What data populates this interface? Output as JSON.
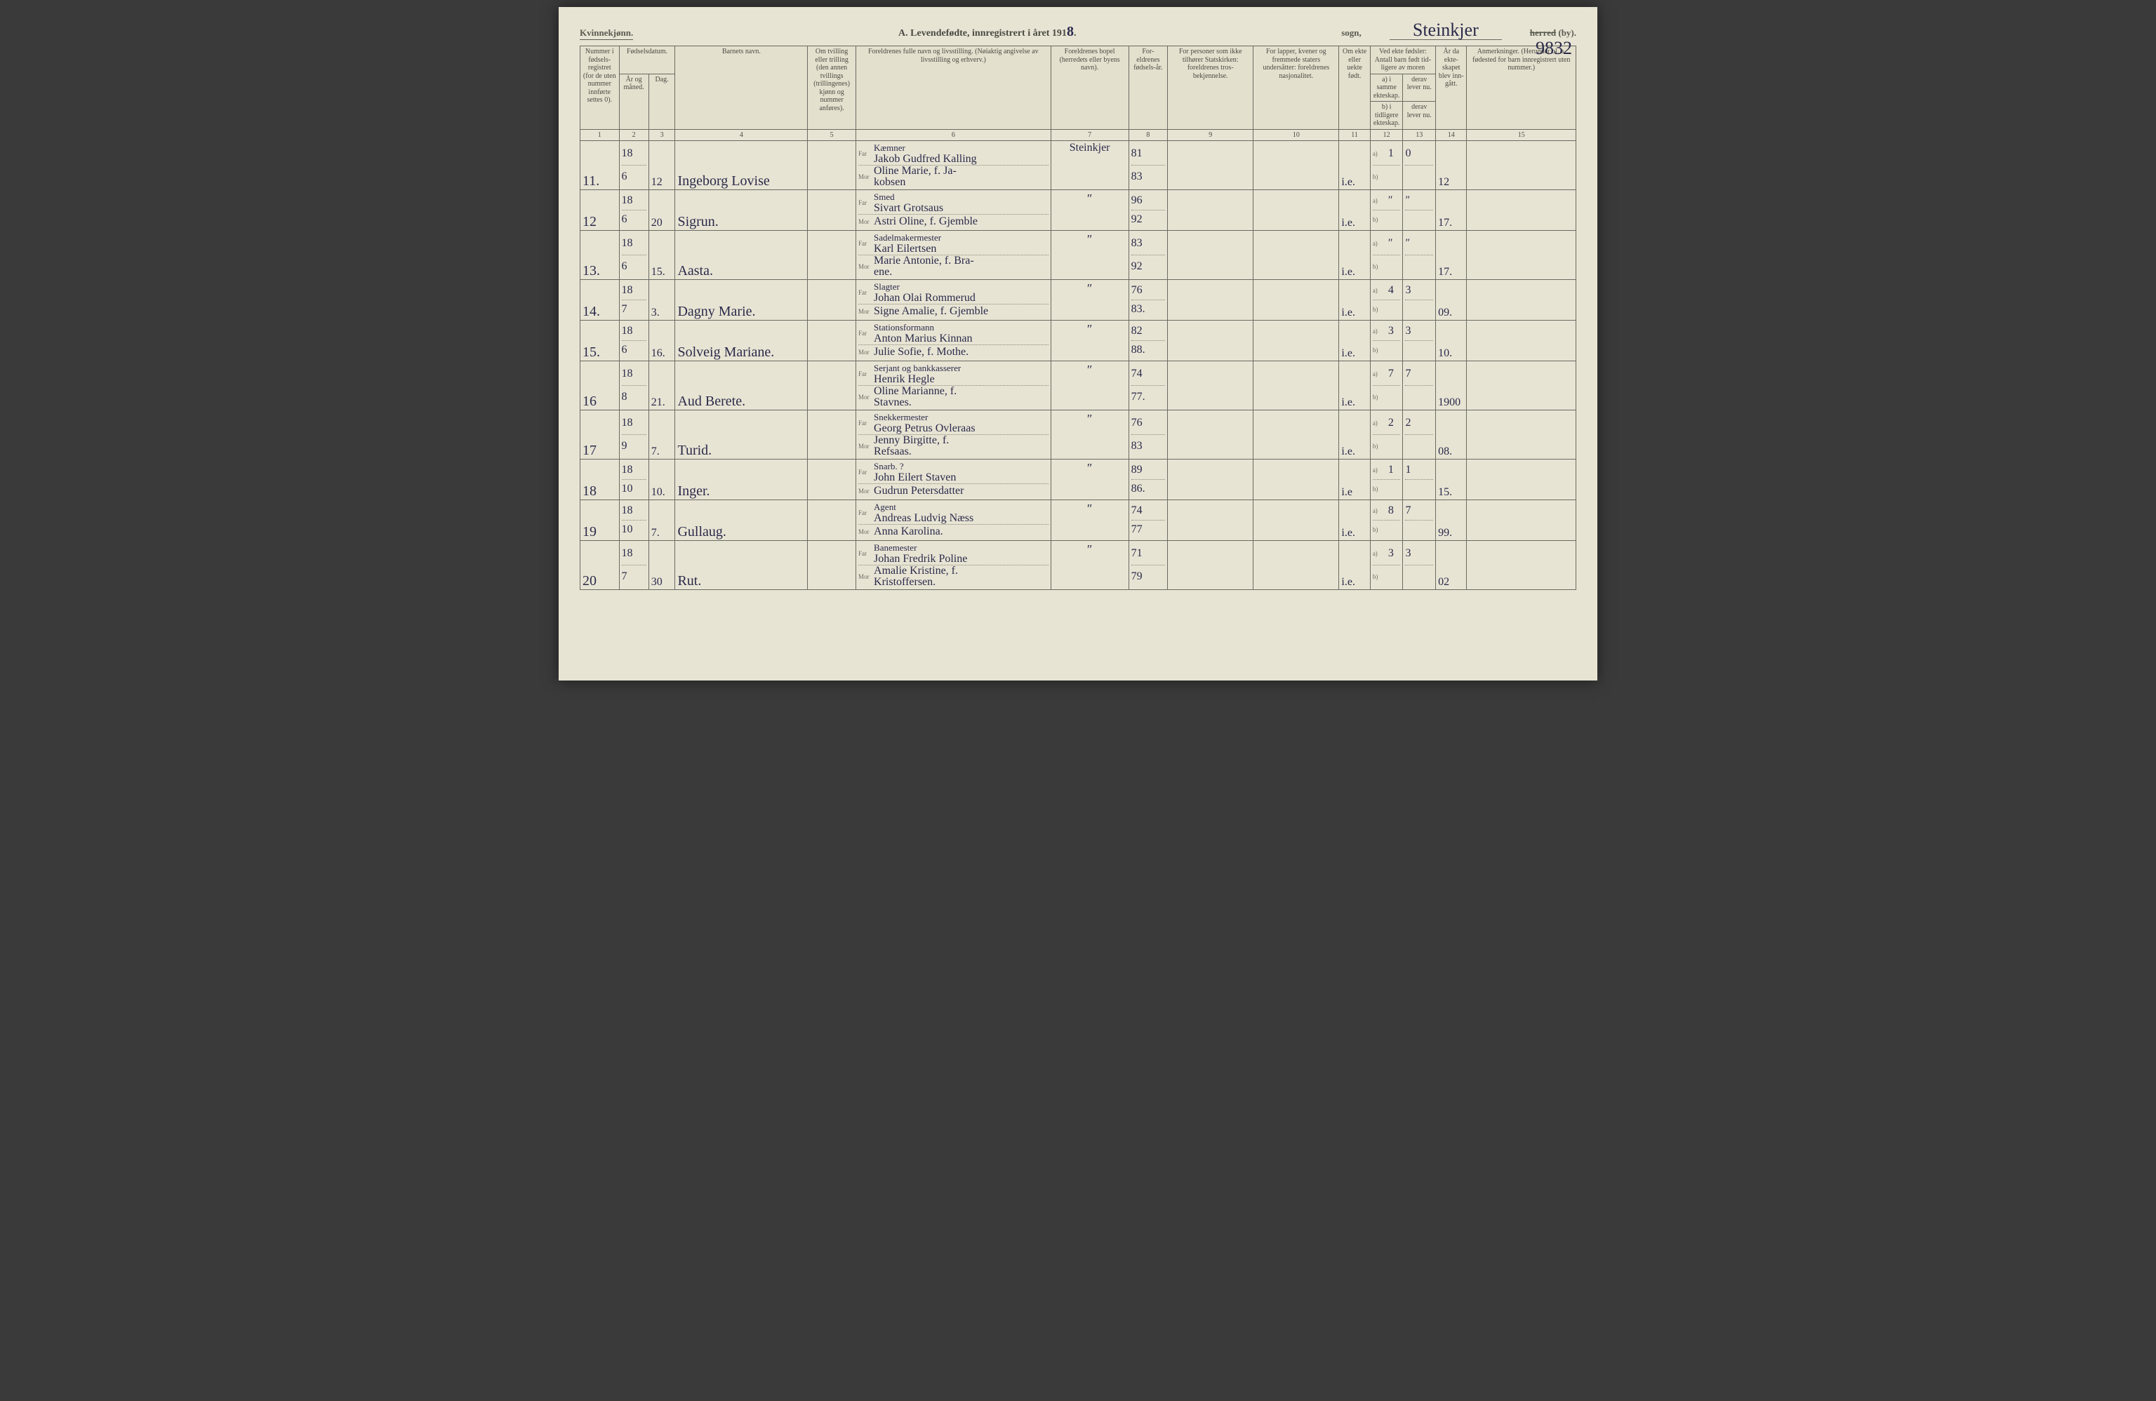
{
  "header": {
    "gender_label": "Kvinnekjønn.",
    "title_prefix": "A.  Levendefødte, innregistrert i året 191",
    "year_digit": "8",
    "sogn_label": "sogn,",
    "parish_hand": "Steinkjer",
    "herred_label": "herred",
    "by_label": "(by).",
    "page_number": "9832"
  },
  "columns": {
    "c1": "Nummer i fødsels-registret (for de uten nummer innførte settes 0).",
    "c2_group": "Fødselsdatum.",
    "c2": "År og måned.",
    "c3": "Dag.",
    "c4": "Barnets navn.",
    "c5": "Om tvilling eller trilling (den annen tvillings (trillingenes) kjønn og nummer anføres).",
    "c6": "Foreldrenes fulle navn og livsstilling.\n(Nøiaktig angivelse av livsstilling og erhverv.)",
    "c7": "Foreldrenes bopel (herredets eller byens navn).",
    "c8": "For-eldrenes fødsels-år.",
    "c9": "For personer som ikke tilhører Statskirken: foreldrenes tros-bekjennelse.",
    "c10": "For lapper, kvener og fremmede staters undersåtter: foreldrenes nasjonalitet.",
    "c11": "Om ekte eller uekte født.",
    "c12_13_group": "Ved ekte fødsler: Antall barn født tid-ligere av moren",
    "c12a": "a) i samme ekteskap.",
    "c12b": "b) i tidligere ekteskap.",
    "c13a": "derav lever nu.",
    "c13b": "derav lever nu.",
    "c14": "År da ekte-skapet blev inn-gått.",
    "c15": "Anmerkninger.\n(Herunder bl. a. fødested for barn innregistrert uten nummer.)",
    "far": "Far",
    "mor": "Mor",
    "a": "a)",
    "b": "b)"
  },
  "colnums": [
    "1",
    "2",
    "3",
    "4",
    "5",
    "6",
    "7",
    "8",
    "9",
    "10",
    "11",
    "12",
    "13",
    "14",
    "15"
  ],
  "rows": [
    {
      "num": "11.",
      "year": "18",
      "month": "6",
      "day": "12",
      "child": "Ingeborg Lovise",
      "far_occ": "Kæmner",
      "far": "Jakob Gudfred Kalling",
      "mor": "Oline Marie, f. Ja-\nkobsen",
      "bopel": "Steinkjer",
      "far_yr": "81",
      "mor_yr": "83",
      "ekte": "i.e.",
      "a": "1",
      "a2": "0",
      "c14": "12"
    },
    {
      "num": "12",
      "year": "18",
      "month": "6",
      "day": "20",
      "child": "Sigrun.",
      "far_occ": "Smed",
      "far": "Sivart Grotsaus",
      "mor": "Astri Oline, f. Gjemble",
      "bopel": "″",
      "far_yr": "96",
      "mor_yr": "92",
      "ekte": "i.e.",
      "a": "″",
      "a2": "″",
      "c14": "17."
    },
    {
      "num": "13.",
      "year": "18",
      "month": "6",
      "day": "15.",
      "child": "Aasta.",
      "far_occ": "Sadelmakermester",
      "far": "Karl Eilertsen",
      "mor": "Marie Antonie, f. Bra-\nene.",
      "bopel": "″",
      "far_yr": "83",
      "mor_yr": "92",
      "ekte": "i.e.",
      "a": "″",
      "a2": "″",
      "c14": "17."
    },
    {
      "num": "14.",
      "year": "18",
      "month": "7",
      "day": "3.",
      "child": "Dagny Marie.",
      "far_occ": "Slagter",
      "far": "Johan Olai Rommerud",
      "mor": "Signe Amalie, f. Gjemble",
      "bopel": "″",
      "far_yr": "76",
      "mor_yr": "83.",
      "ekte": "i.e.",
      "a": "4",
      "a2": "3",
      "c14": "09."
    },
    {
      "num": "15.",
      "year": "18",
      "month": "6",
      "day": "16.",
      "child": "Solveig Mariane.",
      "far_occ": "Stationsformann",
      "far": "Anton Marius Kinnan",
      "mor": "Julie Sofie, f. Mothe.",
      "bopel": "″",
      "far_yr": "82",
      "mor_yr": "88.",
      "ekte": "i.e.",
      "a": "3",
      "a2": "3",
      "c14": "10."
    },
    {
      "num": "16",
      "year": "18",
      "month": "8",
      "day": "21.",
      "child": "Aud Berete.",
      "far_occ": "Serjant og bankkasserer",
      "far": "Henrik Hegle",
      "mor": "Oline Marianne, f.\nStavnes.",
      "bopel": "″",
      "far_yr": "74",
      "mor_yr": "77.",
      "ekte": "i.e.",
      "a": "7",
      "a2": "7",
      "c14": "1900"
    },
    {
      "num": "17",
      "year": "18",
      "month": "9",
      "day": "7.",
      "child": "Turid.",
      "far_occ": "Snekkermester",
      "far": "Georg Petrus Ovleraas",
      "mor": "Jenny Birgitte, f.\nRefsaas.",
      "bopel": "″",
      "far_yr": "76",
      "mor_yr": "83",
      "ekte": "i.e.",
      "a": "2",
      "a2": "2",
      "c14": "08."
    },
    {
      "num": "18",
      "year": "18",
      "month": "10",
      "day": "10.",
      "child": "Inger.",
      "far_occ": "Snarb. ?",
      "far": "John Eilert Staven",
      "mor": "Gudrun Petersdatter",
      "bopel": "″",
      "far_yr": "89",
      "mor_yr": "86.",
      "ekte": "i.e",
      "a": "1",
      "a2": "1",
      "c14": "15."
    },
    {
      "num": "19",
      "year": "18",
      "month": "10",
      "day": "7.",
      "child": "Gullaug.",
      "far_occ": "Agent",
      "far": "Andreas Ludvig Næss",
      "mor": "Anna Karolina.",
      "bopel": "″",
      "far_yr": "74",
      "mor_yr": "77",
      "ekte": "i.e.",
      "a": "8",
      "a2": "7",
      "c14": "99."
    },
    {
      "num": "20",
      "year": "18",
      "month": "7",
      "day": "30",
      "child": "Rut.",
      "far_occ": "Banemester",
      "far": "Johan Fredrik Poline",
      "mor": "Amalie Kristine, f.\nKristoffersen.",
      "bopel": "″",
      "far_yr": "71",
      "mor_yr": "79",
      "ekte": "i.e.",
      "a": "3",
      "a2": "3",
      "c14": "02"
    }
  ]
}
